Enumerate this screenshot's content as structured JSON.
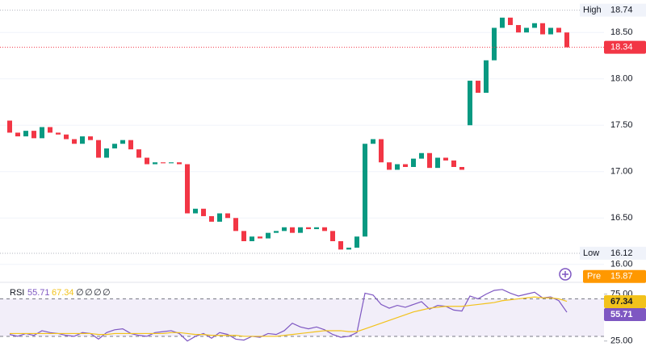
{
  "chart_data": [
    {
      "type": "candlestick",
      "open": [
        17.55,
        17.42,
        17.38,
        17.44,
        17.36,
        17.48,
        17.42,
        17.4,
        17.35,
        17.3,
        17.38,
        17.34,
        17.15,
        17.25,
        17.3,
        17.34,
        17.24,
        17.15,
        17.08,
        17.1,
        17.09,
        17.1,
        17.08,
        16.55,
        16.6,
        16.52,
        16.46,
        16.55,
        16.5,
        16.36,
        16.25,
        16.3,
        16.28,
        16.34,
        16.36,
        16.4,
        16.34,
        16.4,
        16.38,
        16.4,
        16.36,
        16.25,
        16.16,
        16.18,
        16.3,
        17.3,
        17.35,
        17.1,
        17.02,
        17.08,
        17.05,
        17.14,
        17.2,
        17.04,
        17.15,
        17.12,
        17.05,
        17.5,
        17.98,
        17.85,
        18.2,
        18.55,
        18.66,
        18.58,
        18.5,
        18.55,
        18.6,
        18.48,
        18.55,
        18.5
      ],
      "high": {
        "label": "High",
        "value": 18.74
      },
      "low": {
        "label": "Low",
        "value": 16.12
      },
      "close": [
        17.42,
        17.38,
        17.44,
        17.36,
        17.48,
        17.42,
        17.4,
        17.35,
        17.3,
        17.38,
        17.34,
        17.15,
        17.25,
        17.3,
        17.34,
        17.24,
        17.15,
        17.08,
        17.1,
        17.09,
        17.1,
        17.08,
        16.55,
        16.6,
        16.52,
        16.46,
        16.55,
        16.5,
        16.36,
        16.25,
        16.3,
        16.28,
        16.34,
        16.36,
        16.4,
        16.34,
        16.4,
        16.38,
        16.4,
        16.36,
        16.25,
        16.16,
        16.18,
        16.3,
        17.3,
        17.35,
        17.1,
        17.02,
        17.08,
        17.05,
        17.14,
        17.2,
        17.04,
        17.15,
        17.12,
        17.05,
        17.02,
        17.98,
        17.85,
        18.2,
        18.55,
        18.66,
        18.58,
        18.5,
        18.55,
        18.6,
        18.48,
        18.55,
        18.5,
        18.34
      ],
      "up_color": "#089981",
      "down_color": "#f23645",
      "ylim": [
        15.85,
        18.85
      ],
      "yticks": [
        {
          "value": 16,
          "label": "16.00"
        },
        {
          "value": 16.5,
          "label": "16.50"
        },
        {
          "value": 17,
          "label": "17.00"
        },
        {
          "value": 17.5,
          "label": "17.50"
        },
        {
          "value": 18,
          "label": "18.00"
        },
        {
          "value": 18.5,
          "label": "18.50"
        }
      ],
      "grid": true,
      "last": {
        "value": 18.34,
        "color": "#f23645"
      },
      "pre": {
        "label": "Pre",
        "value": 15.87,
        "color": "#ff9800"
      }
    },
    {
      "type": "line",
      "title": "RSI",
      "series": [
        {
          "color": "#7e57c2",
          "values": [
            32,
            30,
            33,
            31,
            36,
            34,
            33,
            31,
            30,
            34,
            33,
            27,
            34,
            37,
            38,
            33,
            31,
            30,
            34,
            35,
            36,
            33,
            25,
            30,
            33,
            28,
            34,
            32,
            27,
            26,
            30,
            29,
            33,
            32,
            36,
            44,
            40,
            38,
            40,
            37,
            32,
            29,
            30,
            34,
            76,
            74,
            64,
            60,
            63,
            61,
            64,
            67,
            59,
            63,
            62,
            58,
            57,
            73,
            70,
            75,
            79,
            80,
            76,
            73,
            75,
            77,
            71,
            72,
            68,
            55.71
          ]
        },
        {
          "color": "#f2c21b",
          "values": [
            33,
            33,
            33,
            33,
            33,
            33,
            33,
            33,
            33,
            33,
            33,
            32,
            32,
            33,
            33,
            33,
            33,
            33,
            33,
            33,
            34,
            34,
            33,
            32,
            32,
            31,
            31,
            31,
            31,
            30,
            30,
            30,
            30,
            30,
            31,
            32,
            33,
            34,
            35,
            36,
            36,
            36,
            35,
            35,
            38,
            41,
            44,
            47,
            50,
            53,
            56,
            58,
            60,
            61,
            62,
            62,
            62,
            63,
            64,
            65,
            66,
            68,
            69,
            70,
            71,
            72,
            71,
            71,
            70,
            67.34
          ]
        }
      ],
      "hidden_values": [
        "∅",
        "∅",
        "∅",
        "∅"
      ],
      "bands": {
        "upper": 70,
        "lower": 30,
        "color": "#7e57c2"
      },
      "ylim": [
        5,
        85
      ],
      "yticks": [
        {
          "value": 25,
          "label": "25.00"
        },
        {
          "value": 75,
          "label": "75.00"
        }
      ]
    }
  ]
}
